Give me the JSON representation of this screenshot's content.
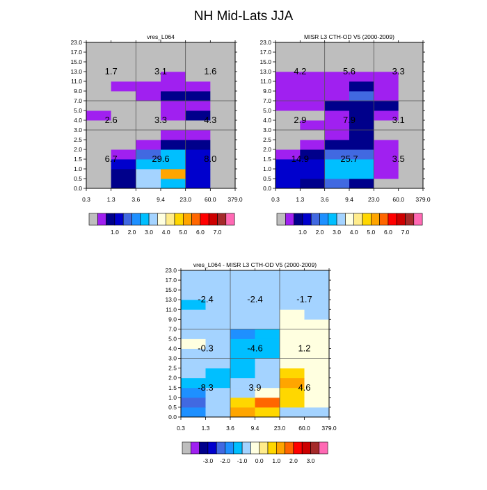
{
  "page_title": "NH Mid-Lats JJA",
  "x_tick_labels": [
    "0.3",
    "1.3",
    "3.6",
    "9.4",
    "23.0",
    "60.0",
    "379.0"
  ],
  "y_tick_labels": [
    "0.0",
    "0.5",
    "1.0",
    "1.5",
    "2.0",
    "2.5",
    "3.0",
    "4.0",
    "5.0",
    "7.0",
    "9.0",
    "11.0",
    "13.0",
    "15.0",
    "17.0",
    "23.0"
  ],
  "colors": {
    "missing": "#bebebe",
    "frame": "#000000",
    "grid_lines": "#555555"
  },
  "palette_top": [
    "#bebebe",
    "#a020f0",
    "#00008b",
    "#0000cd",
    "#4169e1",
    "#1e90ff",
    "#00bfff",
    "#a4d3ff",
    "#ffffe0",
    "#ffec8b",
    "#ffd700",
    "#ffa500",
    "#ff6600",
    "#ff0000",
    "#cd0000",
    "#a52a2a",
    "#ff69b4"
  ],
  "palette_diff": [
    "#bebebe",
    "#a020f0",
    "#00008b",
    "#0000cd",
    "#4169e1",
    "#1e90ff",
    "#00bfff",
    "#a4d3ff",
    "#ffffe0",
    "#ffec8b",
    "#ffd700",
    "#ffa500",
    "#ff6600",
    "#ff0000",
    "#cd0000",
    "#a52a2a",
    "#ff69b4"
  ],
  "colorbar_top_labels": [
    "1.0",
    "2.0",
    "3.0",
    "4.0",
    "5.0",
    "6.0",
    "7.0"
  ],
  "colorbar_diff_labels": [
    "-3.0",
    "-2.0",
    "-1.0",
    "0.0",
    "1.0",
    "2.0",
    "3.0"
  ],
  "chart_data": [
    {
      "type": "heatmap",
      "title": "vres_L064",
      "x_edges": [
        0.3,
        1.3,
        3.6,
        9.4,
        23.0,
        60.0,
        379.0
      ],
      "y_edges": [
        0.0,
        0.5,
        1.0,
        1.5,
        2.0,
        2.5,
        3.0,
        4.0,
        5.0,
        7.0,
        9.0,
        11.0,
        13.0,
        15.0,
        17.0,
        23.0
      ],
      "cell_color_index_rows_bottom_to_top": [
        [
          0,
          2,
          7,
          6,
          3,
          0
        ],
        [
          0,
          2,
          7,
          11,
          3,
          0
        ],
        [
          0,
          3,
          6,
          6,
          3,
          0
        ],
        [
          0,
          1,
          4,
          6,
          3,
          0
        ],
        [
          0,
          0,
          1,
          2,
          2,
          0
        ],
        [
          0,
          0,
          0,
          1,
          1,
          0
        ],
        [
          0,
          0,
          0,
          0,
          0,
          0
        ],
        [
          1,
          0,
          0,
          1,
          2,
          0
        ],
        [
          0,
          0,
          0,
          1,
          1,
          0
        ],
        [
          0,
          0,
          1,
          2,
          2,
          0
        ],
        [
          0,
          1,
          1,
          1,
          1,
          0
        ],
        [
          0,
          0,
          0,
          1,
          0,
          0
        ],
        [
          0,
          0,
          0,
          0,
          0,
          0
        ],
        [
          0,
          0,
          0,
          0,
          0,
          0
        ],
        [
          0,
          0,
          0,
          0,
          0,
          0
        ]
      ],
      "block_labels": [
        {
          "text": "1.7",
          "x": 1.3,
          "y": 13.0
        },
        {
          "text": "3.1",
          "x": 9.4,
          "y": 13.0
        },
        {
          "text": "1.6",
          "x": 60.0,
          "y": 13.0
        },
        {
          "text": "2.6",
          "x": 1.3,
          "y": 4.0
        },
        {
          "text": "3.3",
          "x": 9.4,
          "y": 4.0
        },
        {
          "text": "4.3",
          "x": 60.0,
          "y": 4.0
        },
        {
          "text": "6.7",
          "x": 1.3,
          "y": 1.5
        },
        {
          "text": "29.6",
          "x": 9.4,
          "y": 1.5
        },
        {
          "text": "8.0",
          "x": 60.0,
          "y": 1.5
        }
      ]
    },
    {
      "type": "heatmap",
      "title": "MISR L3 CTH-OD V5 (2000-2009)",
      "x_edges": [
        0.3,
        1.3,
        3.6,
        9.4,
        23.0,
        60.0,
        379.0
      ],
      "y_edges": [
        0.0,
        0.5,
        1.0,
        1.5,
        2.0,
        2.5,
        3.0,
        4.0,
        5.0,
        7.0,
        9.0,
        11.0,
        13.0,
        15.0,
        17.0,
        23.0
      ],
      "cell_color_index_rows_bottom_to_top": [
        [
          3,
          2,
          4,
          2,
          0,
          0
        ],
        [
          3,
          3,
          6,
          6,
          1,
          0
        ],
        [
          3,
          3,
          6,
          6,
          1,
          0
        ],
        [
          1,
          2,
          4,
          4,
          1,
          0
        ],
        [
          0,
          1,
          2,
          2,
          1,
          0
        ],
        [
          0,
          0,
          1,
          2,
          0,
          0
        ],
        [
          0,
          1,
          1,
          2,
          0,
          0
        ],
        [
          0,
          0,
          1,
          2,
          1,
          0
        ],
        [
          1,
          1,
          2,
          2,
          2,
          0
        ],
        [
          1,
          1,
          1,
          4,
          1,
          0
        ],
        [
          1,
          1,
          1,
          2,
          1,
          0
        ],
        [
          1,
          1,
          1,
          1,
          1,
          0
        ],
        [
          0,
          0,
          0,
          0,
          0,
          0
        ],
        [
          0,
          0,
          0,
          0,
          0,
          0
        ],
        [
          0,
          0,
          0,
          0,
          0,
          0
        ]
      ],
      "block_labels": [
        {
          "text": "4.2",
          "x": 1.3,
          "y": 13.0
        },
        {
          "text": "5.6",
          "x": 9.4,
          "y": 13.0
        },
        {
          "text": "3.3",
          "x": 60.0,
          "y": 13.0
        },
        {
          "text": "2.9",
          "x": 1.3,
          "y": 4.0
        },
        {
          "text": "7.9",
          "x": 9.4,
          "y": 4.0
        },
        {
          "text": "3.1",
          "x": 60.0,
          "y": 4.0
        },
        {
          "text": "14.9",
          "x": 1.3,
          "y": 1.5
        },
        {
          "text": "25.7",
          "x": 9.4,
          "y": 1.5
        },
        {
          "text": "3.5",
          "x": 60.0,
          "y": 1.5
        }
      ]
    },
    {
      "type": "heatmap",
      "title": "vres_L064 - MISR L3 CTH-OD V5 (2000-2009)",
      "x_edges": [
        0.3,
        1.3,
        3.6,
        9.4,
        23.0,
        60.0,
        379.0
      ],
      "y_edges": [
        0.0,
        0.5,
        1.0,
        1.5,
        2.0,
        2.5,
        3.0,
        4.0,
        5.0,
        7.0,
        9.0,
        11.0,
        13.0,
        15.0,
        17.0,
        23.0
      ],
      "cell_color_index_rows_bottom_to_top": [
        [
          5,
          7,
          11,
          10,
          7,
          7
        ],
        [
          4,
          7,
          10,
          12,
          10,
          8
        ],
        [
          5,
          7,
          7,
          8,
          10,
          8
        ],
        [
          6,
          6,
          7,
          7,
          11,
          8
        ],
        [
          7,
          6,
          6,
          7,
          10,
          8
        ],
        [
          7,
          7,
          6,
          7,
          8,
          8
        ],
        [
          7,
          7,
          6,
          6,
          8,
          8
        ],
        [
          8,
          7,
          6,
          6,
          8,
          8
        ],
        [
          7,
          7,
          5,
          6,
          8,
          8
        ],
        [
          7,
          7,
          7,
          7,
          8,
          8
        ],
        [
          7,
          7,
          7,
          7,
          8,
          7
        ],
        [
          6,
          7,
          7,
          7,
          7,
          7
        ],
        [
          7,
          7,
          7,
          7,
          7,
          7
        ],
        [
          7,
          7,
          7,
          7,
          7,
          7
        ],
        [
          7,
          7,
          7,
          7,
          7,
          7
        ]
      ],
      "block_labels": [
        {
          "text": "-2.4",
          "x": 1.3,
          "y": 13.0
        },
        {
          "text": "-2.4",
          "x": 9.4,
          "y": 13.0
        },
        {
          "text": "-1.7",
          "x": 60.0,
          "y": 13.0
        },
        {
          "text": "-0.3",
          "x": 1.3,
          "y": 4.0
        },
        {
          "text": "-4.6",
          "x": 9.4,
          "y": 4.0
        },
        {
          "text": "1.2",
          "x": 60.0,
          "y": 4.0
        },
        {
          "text": "-8.3",
          "x": 1.3,
          "y": 1.5
        },
        {
          "text": "3.9",
          "x": 9.4,
          "y": 1.5
        },
        {
          "text": "4.6",
          "x": 60.0,
          "y": 1.5
        }
      ]
    }
  ]
}
